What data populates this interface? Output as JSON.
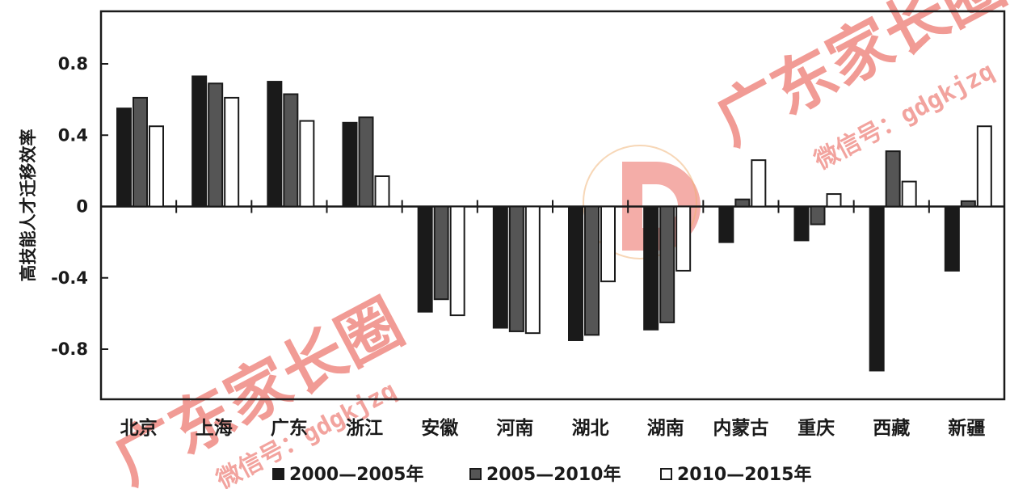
{
  "chart_data": {
    "type": "bar",
    "ylabel": "高技能人才迁移效率",
    "xlabel": "",
    "ylim": [
      -1.1,
      1.1
    ],
    "yticks": [
      0.8,
      0.4,
      0,
      -0.4,
      -0.8
    ],
    "ytick_labels": [
      "0.8",
      "0.4",
      "0",
      "-0.4",
      "-0.8"
    ],
    "grid": false,
    "legend_position": "bottom",
    "categories": [
      "北京",
      "上海",
      "广东",
      "浙江",
      "安徽",
      "河南",
      "湖北",
      "湖南",
      "内蒙古",
      "重庆",
      "西藏",
      "新疆"
    ],
    "series": [
      {
        "name": "2000—2005年",
        "color": "#1a1a1a",
        "values": [
          0.55,
          0.73,
          0.7,
          0.47,
          -0.59,
          -0.68,
          -0.75,
          -0.69,
          -0.2,
          -0.19,
          -0.92,
          -0.36
        ]
      },
      {
        "name": "2005—2010年",
        "color": "#555555",
        "values": [
          0.61,
          0.69,
          0.63,
          0.5,
          -0.52,
          -0.7,
          -0.72,
          -0.65,
          0.04,
          -0.1,
          0.31,
          0.03
        ]
      },
      {
        "name": "2010—2015年",
        "color": "#ffffff",
        "values": [
          0.45,
          0.61,
          0.48,
          0.17,
          -0.61,
          -0.71,
          -0.42,
          -0.36,
          0.26,
          0.07,
          0.14,
          0.45
        ]
      }
    ]
  },
  "watermark": {
    "brand": "广东家长圈",
    "wechat": "微信号：gdgkjzq",
    "color": "#e64a3f"
  }
}
